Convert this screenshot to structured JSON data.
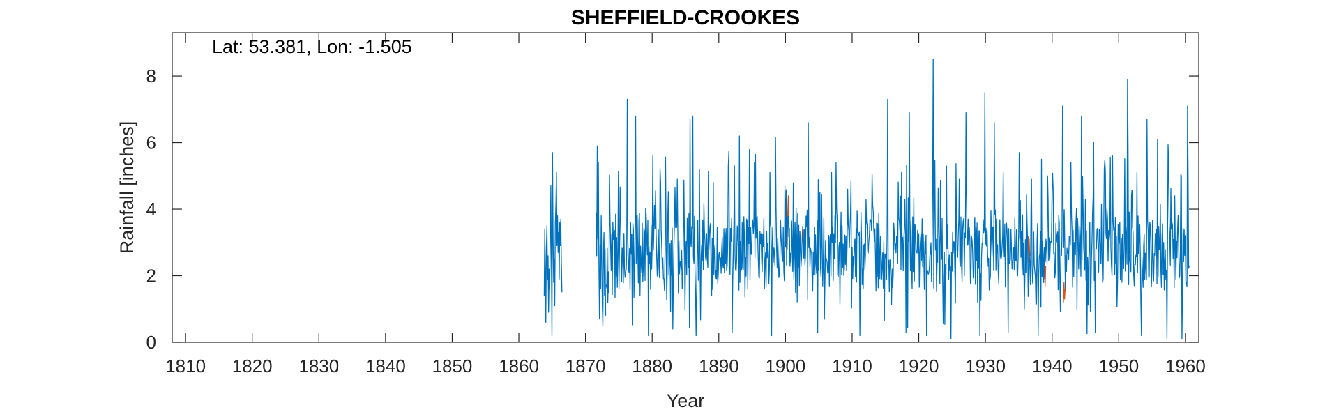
{
  "chart_data": {
    "type": "line",
    "title": "SHEFFIELD-CROOKES",
    "annotation": "Lat: 53.381, Lon: -1.505",
    "xlabel": "Year",
    "ylabel": "Rainfall [inches]",
    "xlim": [
      1808,
      1962
    ],
    "ylim": [
      0,
      9.3
    ],
    "xticks": [
      1810,
      1820,
      1830,
      1840,
      1850,
      1860,
      1870,
      1880,
      1890,
      1900,
      1910,
      1920,
      1930,
      1940,
      1950,
      1960
    ],
    "yticks": [
      0,
      2,
      4,
      6,
      8
    ],
    "grid": false,
    "legend": "none",
    "series": [
      {
        "color": "#d95319",
        "segments": [
          {
            "start": 1900.1,
            "step": 0.0833,
            "values": [
              3.1,
              4.6,
              2.8,
              3.9,
              4.4,
              3.3
            ]
          },
          {
            "start": 1902.6,
            "step": 0.0833,
            "values": [
              3.5,
              2.7,
              3.4,
              2.9
            ]
          },
          {
            "start": 1936.4,
            "step": 0.0833,
            "values": [
              3.2,
              2.4,
              3.1,
              2.6
            ]
          },
          {
            "start": 1938.8,
            "step": 0.0833,
            "values": [
              1.9,
              2.6,
              1.7,
              2.3
            ]
          },
          {
            "start": 1941.7,
            "step": 0.0833,
            "values": [
              1.2,
              1.8,
              1.3,
              1.6
            ]
          }
        ]
      },
      {
        "color": "#0072bd",
        "segments": [
          {
            "start": 1863.8,
            "step": 0.0833,
            "values": [
              1.4,
              3.4,
              2.1,
              0.6,
              2.8,
              3.5,
              1.9,
              2.6,
              0.9,
              2.2,
              1.6,
              3.0,
              4.7,
              2.4,
              0.2,
              5.7,
              3.1,
              1.8,
              2.5,
              1.1,
              3.6,
              4.1,
              5.1,
              2.9,
              3.8,
              2.7,
              3.3,
              1.9,
              3.6,
              2.9,
              3.7,
              2.4,
              1.5
            ]
          },
          {
            "start": 1871.6,
            "step": 0.0833,
            "values": [
              3.9,
              2.6,
              5.9,
              3.1,
              5.4,
              2.2,
              0.7,
              2.9,
              1.6,
              3.8,
              2.5,
              1.1,
              0.5,
              2.7,
              3.3,
              1.4,
              2.8,
              0.8
            ]
          }
        ]
      }
    ],
    "generated_blue": {
      "start": 1873.1,
      "end": 1960.6,
      "step": 0.0833,
      "seed": 17,
      "base": 2.7,
      "amplitude": 1.1,
      "peaks": [
        [
          1876.3,
          7.3
        ],
        [
          1877.5,
          6.8
        ],
        [
          1880.1,
          5.6
        ],
        [
          1881.3,
          4.8
        ],
        [
          1883.8,
          4.9
        ],
        [
          1885.7,
          6.7
        ],
        [
          1886.1,
          6.8
        ],
        [
          1889.2,
          4.8
        ],
        [
          1891.4,
          5.3
        ],
        [
          1893.1,
          6.2
        ],
        [
          1895.3,
          5.4
        ],
        [
          1897.7,
          5.1
        ],
        [
          1899.9,
          4.7
        ],
        [
          1903.4,
          6.6
        ],
        [
          1905.2,
          4.5
        ],
        [
          1907.6,
          5.4
        ],
        [
          1909.3,
          4.6
        ],
        [
          1912.1,
          4.3
        ],
        [
          1915.3,
          7.3
        ],
        [
          1917.4,
          5.1
        ],
        [
          1918.6,
          6.9
        ],
        [
          1922.2,
          8.5
        ],
        [
          1924.2,
          5.3
        ],
        [
          1926.1,
          4.9
        ],
        [
          1927.1,
          6.9
        ],
        [
          1929.9,
          7.5
        ],
        [
          1931.3,
          6.6
        ],
        [
          1932.7,
          5.1
        ],
        [
          1935.1,
          5.7
        ],
        [
          1936.9,
          4.9
        ],
        [
          1938.4,
          5.5
        ],
        [
          1939.3,
          5.0
        ],
        [
          1941.6,
          7.1
        ],
        [
          1942.8,
          5.4
        ],
        [
          1944.4,
          6.8
        ],
        [
          1946.2,
          6.0
        ],
        [
          1947.8,
          5.2
        ],
        [
          1949.1,
          5.6
        ],
        [
          1951.3,
          7.9
        ],
        [
          1952.7,
          5.1
        ],
        [
          1954.2,
          6.7
        ],
        [
          1955.8,
          6.1
        ],
        [
          1957.5,
          5.4
        ],
        [
          1958.4,
          4.4
        ],
        [
          1959.4,
          5.0
        ],
        [
          1960.3,
          7.1
        ]
      ],
      "troughs": [
        [
          1879.4,
          0.2
        ],
        [
          1883.1,
          0.4
        ],
        [
          1886.6,
          0.2
        ],
        [
          1892.0,
          0.3
        ],
        [
          1897.9,
          0.2
        ],
        [
          1904.8,
          0.3
        ],
        [
          1911.2,
          0.2
        ],
        [
          1918.1,
          0.3
        ],
        [
          1921.2,
          0.2
        ],
        [
          1924.8,
          0.1
        ],
        [
          1929.2,
          0.2
        ],
        [
          1933.4,
          0.3
        ],
        [
          1937.9,
          0.2
        ],
        [
          1946.5,
          0.3
        ],
        [
          1953.4,
          0.2
        ],
        [
          1957.2,
          0.1
        ],
        [
          1959.5,
          0.1
        ]
      ]
    }
  }
}
